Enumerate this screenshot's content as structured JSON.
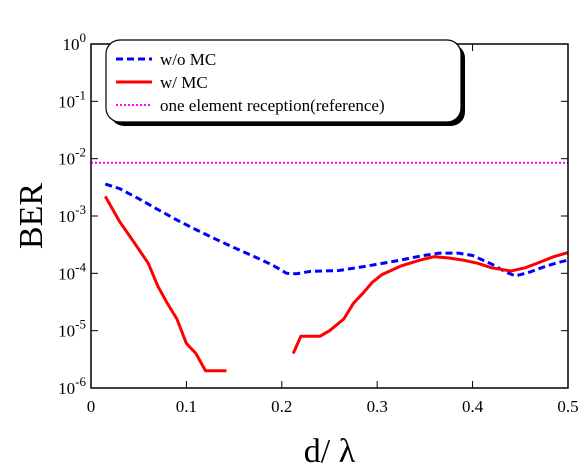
{
  "chart_data": {
    "type": "line",
    "xlabel": "d/ λ",
    "ylabel": "BER",
    "x_scale": "linear",
    "y_scale": "log",
    "xlim": [
      0,
      0.5
    ],
    "ylim": [
      1e-06,
      1
    ],
    "x_ticks": [
      0,
      0.1,
      0.2,
      0.3,
      0.4,
      0.5
    ],
    "x_tick_labels": [
      "0",
      "0.1",
      "0.2",
      "0.3",
      "0.4",
      "0.5"
    ],
    "y_ticks": [
      1e-06,
      1e-05,
      0.0001,
      0.001,
      0.01,
      0.1,
      1
    ],
    "y_tick_labels": [
      {
        "base": "10",
        "exp": "-6"
      },
      {
        "base": "10",
        "exp": "-5"
      },
      {
        "base": "10",
        "exp": "-4"
      },
      {
        "base": "10",
        "exp": "-3"
      },
      {
        "base": "10",
        "exp": "-2"
      },
      {
        "base": "10",
        "exp": "-1"
      },
      {
        "base": "10",
        "exp": "0"
      }
    ],
    "grid": false,
    "legend_position": "top-left",
    "series": [
      {
        "name": "w/o  MC",
        "color": "#0000ff",
        "dash": "dashed",
        "points": [
          [
            0.015,
            0.0036
          ],
          [
            0.03,
            0.003
          ],
          [
            0.05,
            0.002
          ],
          [
            0.07,
            0.0013
          ],
          [
            0.09,
            0.00085
          ],
          [
            0.11,
            0.00058
          ],
          [
            0.13,
            0.0004
          ],
          [
            0.15,
            0.00028
          ],
          [
            0.17,
            0.0002
          ],
          [
            0.19,
            0.00014
          ],
          [
            0.205,
            0.0001
          ],
          [
            0.215,
            9.8e-05
          ],
          [
            0.23,
            0.000108
          ],
          [
            0.26,
            0.000112
          ],
          [
            0.29,
            0.000135
          ],
          [
            0.32,
            0.000165
          ],
          [
            0.345,
            0.0002
          ],
          [
            0.365,
            0.000225
          ],
          [
            0.385,
            0.000225
          ],
          [
            0.4,
            0.000205
          ],
          [
            0.42,
            0.000145
          ],
          [
            0.435,
            0.000105
          ],
          [
            0.445,
            9e-05
          ],
          [
            0.46,
            0.000105
          ],
          [
            0.475,
            0.00013
          ],
          [
            0.49,
            0.000155
          ],
          [
            0.5,
            0.00017
          ]
        ]
      },
      {
        "name": "w/   MC",
        "color": "#ff0000",
        "dash": "solid",
        "segments": [
          [
            [
              0.015,
              0.0022
            ],
            [
              0.03,
              0.0008
            ],
            [
              0.045,
              0.00035
            ],
            [
              0.06,
              0.00015
            ],
            [
              0.07,
              6e-05
            ],
            [
              0.08,
              3e-05
            ],
            [
              0.09,
              1.6e-05
            ],
            [
              0.1,
              6e-06
            ],
            [
              0.11,
              4e-06
            ],
            [
              0.12,
              2e-06
            ],
            [
              0.135,
              2e-06
            ],
            [
              0.142,
              2e-06
            ]
          ],
          [
            [
              0.212,
              4e-06
            ],
            [
              0.22,
              8e-06
            ],
            [
              0.24,
              8e-06
            ],
            [
              0.25,
              1e-05
            ],
            [
              0.265,
              1.6e-05
            ],
            [
              0.275,
              3e-05
            ],
            [
              0.285,
              4.5e-05
            ],
            [
              0.295,
              7e-05
            ],
            [
              0.305,
              9.5e-05
            ],
            [
              0.325,
              0.000135
            ],
            [
              0.345,
              0.00017
            ],
            [
              0.36,
              0.000195
            ],
            [
              0.375,
              0.000185
            ],
            [
              0.39,
              0.00017
            ],
            [
              0.405,
              0.00015
            ],
            [
              0.42,
              0.000125
            ],
            [
              0.44,
              0.00011
            ],
            [
              0.455,
              0.000125
            ],
            [
              0.47,
              0.000155
            ],
            [
              0.485,
              0.000195
            ],
            [
              0.5,
              0.00023
            ]
          ]
        ]
      },
      {
        "name": "one element reception(reference)",
        "color": "#ff00ff",
        "dash": "dotted",
        "points": [
          [
            0.0,
            0.0085
          ],
          [
            0.5,
            0.0085
          ]
        ]
      }
    ]
  }
}
